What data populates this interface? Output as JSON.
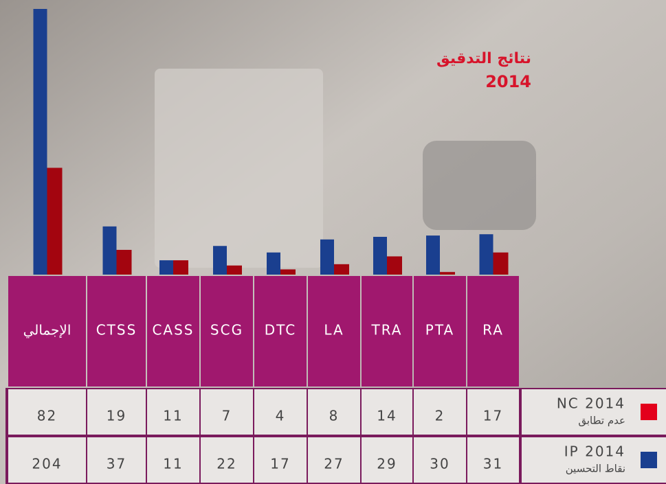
{
  "chart_data": {
    "type": "bar",
    "title": "نتائج التدقيق",
    "subtitle": "2014",
    "categories": [
      "الإجمالي",
      "CTSS",
      "CASS",
      "SCG",
      "DTC",
      "LA",
      "TRA",
      "PTA",
      "RA"
    ],
    "series": [
      {
        "name": "IP 2014",
        "label": "نقاط التحسين",
        "color": "#1a3f8f",
        "values": [
          204,
          37,
          11,
          22,
          17,
          27,
          29,
          30,
          31
        ]
      },
      {
        "name": "NC 2014",
        "label": "عدم تطابق",
        "color": "#a3050f",
        "values": [
          82,
          19,
          11,
          7,
          4,
          8,
          14,
          2,
          17
        ]
      }
    ]
  }
}
